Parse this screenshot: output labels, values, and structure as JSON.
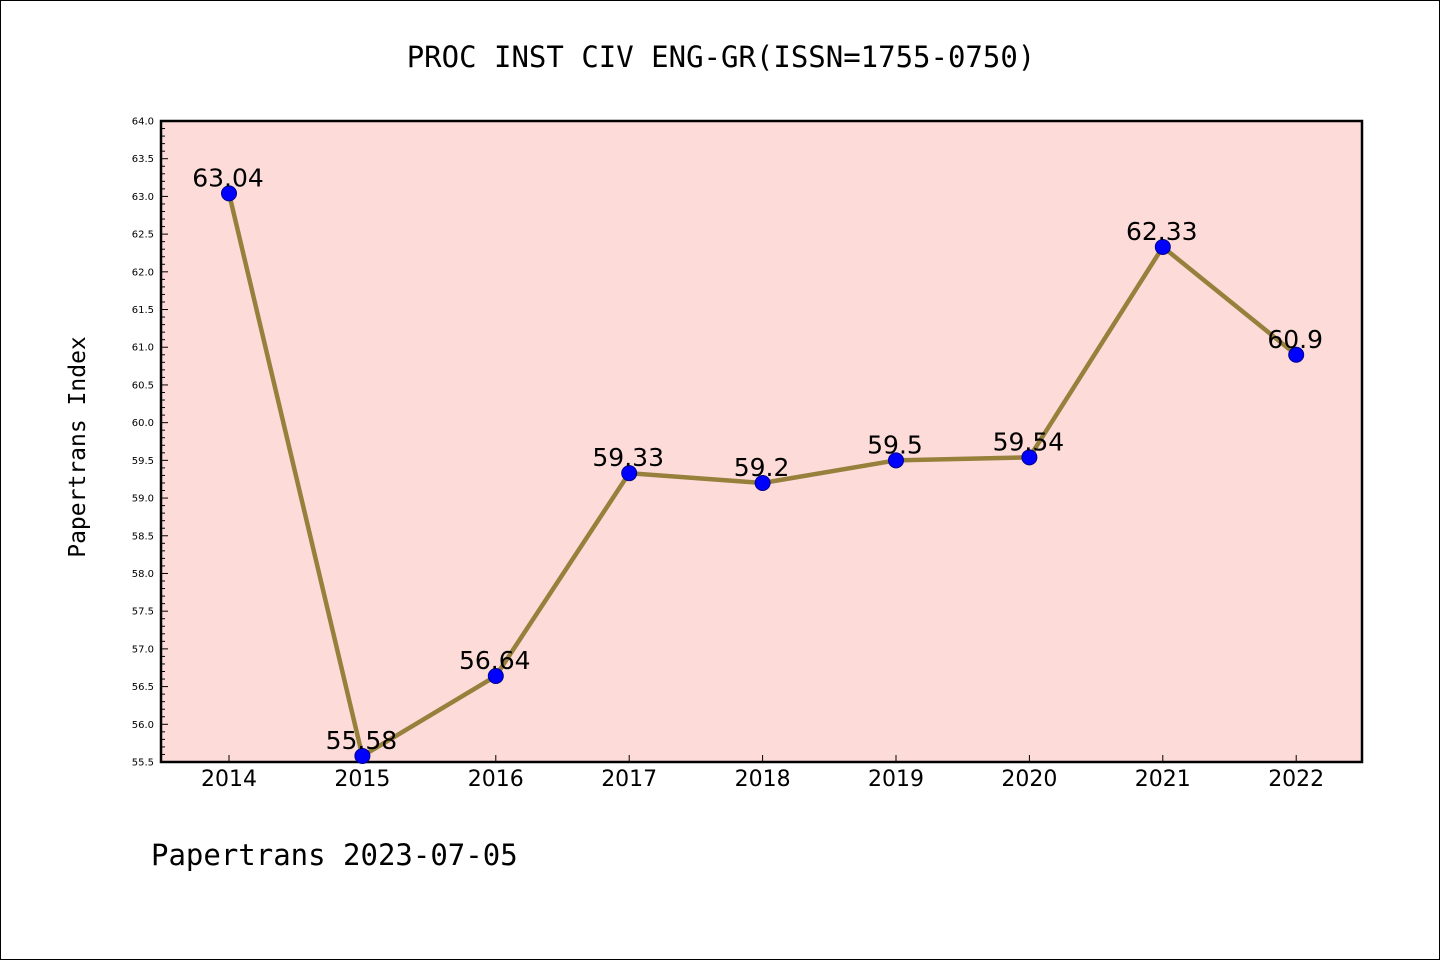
{
  "chart_data": {
    "type": "line",
    "title": "PROC INST CIV ENG-GR(ISSN=1755-0750)",
    "ylabel": "Papertrans Index",
    "xlabel": "",
    "footer": "Papertrans 2023-07-05",
    "categories": [
      "2014",
      "2015",
      "2016",
      "2017",
      "2018",
      "2019",
      "2020",
      "2021",
      "2022"
    ],
    "values": [
      63.04,
      55.58,
      56.64,
      59.33,
      59.2,
      59.5,
      59.54,
      62.33,
      60.9
    ],
    "data_labels": [
      "63.04",
      "55.58",
      "56.64",
      "59.33",
      "59.2",
      "59.5",
      "59.54",
      "62.33",
      "60.9"
    ],
    "ylim": [
      55.5,
      64.0
    ],
    "ytick_step": 0.5,
    "ytick_labels": [
      "55.5",
      "56.0",
      "56.5",
      "57.0",
      "57.5",
      "58.0",
      "58.5",
      "59.0",
      "59.5",
      "60.0",
      "60.5",
      "61.0",
      "61.5",
      "62.0",
      "62.5",
      "63.0",
      "63.5",
      "64.0"
    ],
    "grid": false,
    "colors": {
      "plot_background": "#fddbd8",
      "line": "#96803c",
      "marker": "#0000ff",
      "marker_edge": "#00008b"
    }
  }
}
